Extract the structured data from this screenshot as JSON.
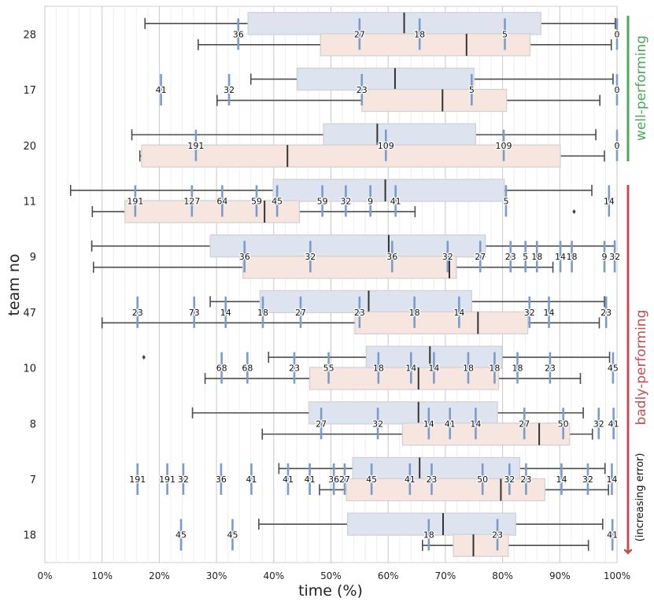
{
  "chart_data": {
    "type": "boxplot",
    "xlabel": "time (%)",
    "ylabel": "team no",
    "xlim": [
      0,
      100
    ],
    "x_ticks": [
      0,
      10,
      20,
      30,
      40,
      50,
      60,
      70,
      80,
      90,
      100
    ],
    "x_tick_labels": [
      "0%",
      "10%",
      "20%",
      "30%",
      "40%",
      "50%",
      "60%",
      "70%",
      "80%",
      "90%",
      "100%"
    ],
    "colors": {
      "upper_box": "#dde4ef",
      "lower_box": "#f6e6df",
      "marker": "#7b9bc8",
      "well": "#4ca95c",
      "bad": "#c44e52"
    },
    "annotations": {
      "well": "well-performing",
      "bad": "badly-performing",
      "increasing": "(increasing error)"
    },
    "teams": [
      {
        "team": "28",
        "upper": {
          "whislo": 17.5,
          "q1": 35.5,
          "med": 62.8,
          "q3": 86.7,
          "whishi": 99.7,
          "fliers": []
        },
        "lower": {
          "whislo": 26.8,
          "q1": 48.2,
          "med": 73.7,
          "q3": 84.8,
          "whishi": 99.0,
          "fliers": []
        },
        "markers": [
          {
            "x": 33.8,
            "label": "36"
          },
          {
            "x": 55.0,
            "label": "27"
          },
          {
            "x": 65.5,
            "label": "18"
          },
          {
            "x": 80.4,
            "label": "5"
          },
          {
            "x": 100.0,
            "label": "0"
          }
        ]
      },
      {
        "team": "17",
        "upper": {
          "whislo": 36.0,
          "q1": 44.1,
          "med": 61.2,
          "q3": 75.0,
          "whishi": 99.3,
          "fliers": []
        },
        "lower": {
          "whislo": 30.1,
          "q1": 55.4,
          "med": 69.5,
          "q3": 80.7,
          "whishi": 97.0,
          "fliers": []
        },
        "markers": [
          {
            "x": 20.3,
            "label": "41"
          },
          {
            "x": 32.2,
            "label": "32"
          },
          {
            "x": 55.4,
            "label": "23"
          },
          {
            "x": 74.6,
            "label": "5"
          },
          {
            "x": 100.0,
            "label": "0"
          }
        ]
      },
      {
        "team": "20",
        "upper": {
          "whislo": 15.2,
          "q1": 48.7,
          "med": 58.1,
          "q3": 75.3,
          "whishi": 96.3,
          "fliers": []
        },
        "lower": {
          "whislo": 16.6,
          "q1": 16.9,
          "med": 42.4,
          "q3": 90.1,
          "whishi": 97.8,
          "fliers": []
        },
        "markers": [
          {
            "x": 26.4,
            "label": "191"
          },
          {
            "x": 59.6,
            "label": "109"
          },
          {
            "x": 80.2,
            "label": "109"
          },
          {
            "x": 100.0,
            "label": "0"
          }
        ]
      },
      {
        "team": "11",
        "upper": {
          "whislo": 4.5,
          "q1": 39.9,
          "med": 59.5,
          "q3": 80.3,
          "whishi": 95.6,
          "fliers": []
        },
        "lower": {
          "whislo": 8.3,
          "q1": 14.0,
          "med": 38.4,
          "q3": 44.5,
          "whishi": 64.7,
          "fliers": [
            92.5
          ]
        },
        "markers": [
          {
            "x": 15.8,
            "label": "191"
          },
          {
            "x": 25.7,
            "label": "127"
          },
          {
            "x": 31.0,
            "label": "64"
          },
          {
            "x": 37.0,
            "label": "59"
          },
          {
            "x": 40.6,
            "label": "45"
          },
          {
            "x": 48.5,
            "label": "59"
          },
          {
            "x": 52.6,
            "label": "32"
          },
          {
            "x": 56.9,
            "label": "9"
          },
          {
            "x": 61.3,
            "label": "41"
          },
          {
            "x": 80.6,
            "label": "5"
          },
          {
            "x": 98.6,
            "label": "14"
          }
        ]
      },
      {
        "team": "9",
        "upper": {
          "whislo": 8.2,
          "q1": 28.9,
          "med": 60.1,
          "q3": 77.0,
          "whishi": 99.6,
          "fliers": []
        },
        "lower": {
          "whislo": 8.5,
          "q1": 34.6,
          "med": 70.7,
          "q3": 71.9,
          "whishi": 88.8,
          "fliers": []
        },
        "markers": [
          {
            "x": 34.9,
            "label": "36"
          },
          {
            "x": 46.4,
            "label": "32"
          },
          {
            "x": 60.7,
            "label": "36"
          },
          {
            "x": 70.4,
            "label": "32"
          },
          {
            "x": 76.1,
            "label": "27"
          },
          {
            "x": 81.4,
            "label": "23"
          },
          {
            "x": 84.0,
            "label": "5"
          },
          {
            "x": 86.0,
            "label": "18"
          },
          {
            "x": 90.1,
            "label": "14"
          },
          {
            "x": 92.1,
            "label": "18"
          },
          {
            "x": 97.8,
            "label": "9"
          },
          {
            "x": 99.6,
            "label": "32"
          }
        ]
      },
      {
        "team": "47",
        "upper": {
          "whislo": 28.9,
          "q1": 37.6,
          "med": 56.6,
          "q3": 74.6,
          "whishi": 97.8,
          "fliers": []
        },
        "lower": {
          "whislo": 10.0,
          "q1": 54.2,
          "med": 75.7,
          "q3": 84.4,
          "whishi": 96.9,
          "fliers": []
        },
        "markers": [
          {
            "x": 16.2,
            "label": "23"
          },
          {
            "x": 26.1,
            "label": "73"
          },
          {
            "x": 31.6,
            "label": "14"
          },
          {
            "x": 38.1,
            "label": "18"
          },
          {
            "x": 44.7,
            "label": "27"
          },
          {
            "x": 55.0,
            "label": "23"
          },
          {
            "x": 64.6,
            "label": "18"
          },
          {
            "x": 72.4,
            "label": "14"
          },
          {
            "x": 84.7,
            "label": "32"
          },
          {
            "x": 88.1,
            "label": "14"
          },
          {
            "x": 98.1,
            "label": "23"
          }
        ]
      },
      {
        "team": "10",
        "upper": {
          "whislo": 39.1,
          "q1": 56.2,
          "med": 67.3,
          "q3": 79.9,
          "whishi": 98.7,
          "fliers": [
            17.3
          ]
        },
        "lower": {
          "whislo": 28.0,
          "q1": 46.3,
          "med": 65.3,
          "q3": 79.3,
          "whishi": 93.6,
          "fliers": []
        },
        "markers": [
          {
            "x": 30.9,
            "label": "68"
          },
          {
            "x": 35.4,
            "label": "68"
          },
          {
            "x": 43.6,
            "label": "23"
          },
          {
            "x": 49.6,
            "label": "55"
          },
          {
            "x": 58.3,
            "label": "18"
          },
          {
            "x": 64.0,
            "label": "14"
          },
          {
            "x": 68.0,
            "label": "14"
          },
          {
            "x": 74.0,
            "label": "18"
          },
          {
            "x": 78.6,
            "label": "18"
          },
          {
            "x": 82.6,
            "label": "18"
          },
          {
            "x": 88.3,
            "label": "23"
          },
          {
            "x": 99.3,
            "label": "45"
          }
        ]
      },
      {
        "team": "8",
        "upper": {
          "whislo": 25.8,
          "q1": 46.2,
          "med": 65.3,
          "q3": 79.1,
          "whishi": 94.1,
          "fliers": []
        },
        "lower": {
          "whislo": 38.0,
          "q1": 62.5,
          "med": 86.4,
          "q3": 91.7,
          "whishi": 95.7,
          "fliers": []
        },
        "markers": [
          {
            "x": 48.3,
            "label": "27"
          },
          {
            "x": 58.2,
            "label": "32"
          },
          {
            "x": 67.1,
            "label": "14"
          },
          {
            "x": 70.8,
            "label": "41"
          },
          {
            "x": 75.3,
            "label": "14"
          },
          {
            "x": 83.8,
            "label": "27"
          },
          {
            "x": 90.6,
            "label": "50"
          },
          {
            "x": 96.8,
            "label": "32"
          },
          {
            "x": 99.4,
            "label": "41"
          }
        ]
      },
      {
        "team": "7",
        "upper": {
          "whislo": 40.9,
          "q1": 53.8,
          "med": 65.5,
          "q3": 83.0,
          "whishi": 97.9,
          "fliers": []
        },
        "lower": {
          "whislo": 48.0,
          "q1": 52.7,
          "med": 79.7,
          "q3": 87.4,
          "whishi": 98.5,
          "fliers": []
        },
        "markers": [
          {
            "x": 16.2,
            "label": "191"
          },
          {
            "x": 21.4,
            "label": "191"
          },
          {
            "x": 24.2,
            "label": "32"
          },
          {
            "x": 30.8,
            "label": "36"
          },
          {
            "x": 36.1,
            "label": "41"
          },
          {
            "x": 42.5,
            "label": "41"
          },
          {
            "x": 46.3,
            "label": "41"
          },
          {
            "x": 50.5,
            "label": "36"
          },
          {
            "x": 52.4,
            "label": "27"
          },
          {
            "x": 57.1,
            "label": "45"
          },
          {
            "x": 63.8,
            "label": "41"
          },
          {
            "x": 67.6,
            "label": "23"
          },
          {
            "x": 76.5,
            "label": "50"
          },
          {
            "x": 81.2,
            "label": "32"
          },
          {
            "x": 84.1,
            "label": "23"
          },
          {
            "x": 90.3,
            "label": "14"
          },
          {
            "x": 94.9,
            "label": "32"
          },
          {
            "x": 99.1,
            "label": "14"
          }
        ]
      },
      {
        "team": "18",
        "upper": {
          "whislo": 37.4,
          "q1": 52.9,
          "med": 69.6,
          "q3": 82.3,
          "whishi": 97.5,
          "fliers": []
        },
        "lower": {
          "whislo": 66.0,
          "q1": 71.4,
          "med": 74.9,
          "q3": 81.0,
          "whishi": 95.0,
          "fliers": []
        },
        "markers": [
          {
            "x": 23.8,
            "label": "45"
          },
          {
            "x": 32.8,
            "label": "45"
          },
          {
            "x": 67.1,
            "label": "18"
          },
          {
            "x": 79.1,
            "label": "23"
          },
          {
            "x": 99.2,
            "label": "41"
          }
        ]
      }
    ]
  }
}
